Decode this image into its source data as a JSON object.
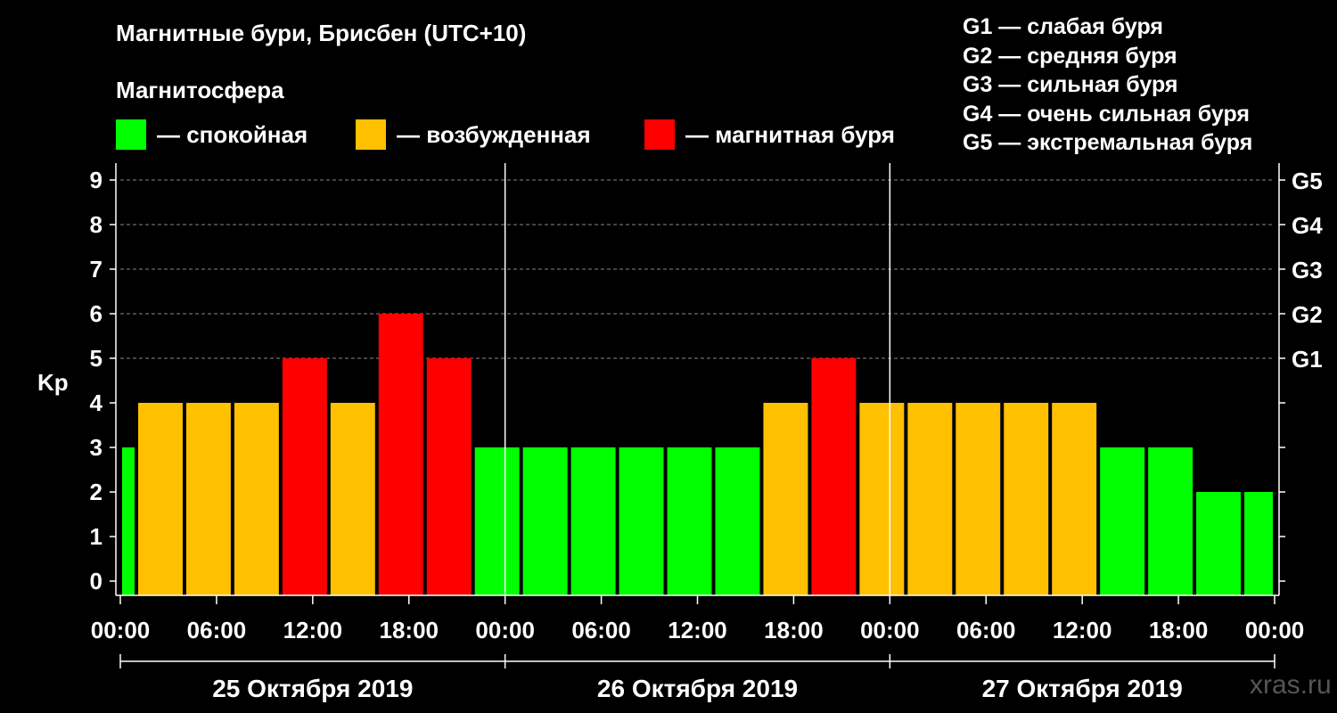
{
  "header": {
    "title": "Магнитные бури, Брисбен (UTC+10)",
    "subtitle": "Магнитосфера"
  },
  "legend": [
    {
      "label": "— спокойная",
      "color": "#00ff00"
    },
    {
      "label": "— возбужденная",
      "color": "#ffc000"
    },
    {
      "label": "— магнитная буря",
      "color": "#ff0000"
    }
  ],
  "g_scale": [
    "G1 — слабая буря",
    "G2 — средняя буря",
    "G3 — сильная буря",
    "G4 — очень сильная буря",
    "G5 — экстремальная буря"
  ],
  "watermark": "xras.ru",
  "colors": {
    "quiet": "#00ff00",
    "active": "#ffc000",
    "storm": "#ff0000",
    "background": "#000000",
    "axis": "#ffffff",
    "grid": "#888888"
  },
  "chart_data": {
    "type": "bar",
    "ylabel": "Kp",
    "ylim": [
      0,
      9
    ],
    "y_ticks": [
      0,
      1,
      2,
      3,
      4,
      5,
      6,
      7,
      8,
      9
    ],
    "right_axis_labels": [
      {
        "kp": 5,
        "label": "G1"
      },
      {
        "kp": 6,
        "label": "G2"
      },
      {
        "kp": 7,
        "label": "G3"
      },
      {
        "kp": 8,
        "label": "G4"
      },
      {
        "kp": 9,
        "label": "G5"
      }
    ],
    "grid_lines_at": [
      5,
      6,
      7,
      8,
      9
    ],
    "x_range_hours": [
      0,
      72
    ],
    "x_tick_labels": [
      "00:00",
      "06:00",
      "12:00",
      "18:00",
      "00:00",
      "06:00",
      "12:00",
      "18:00",
      "00:00",
      "06:00",
      "12:00",
      "18:00",
      "00:00"
    ],
    "x_tick_hours": [
      0,
      6,
      12,
      18,
      24,
      30,
      36,
      42,
      48,
      54,
      60,
      66,
      72
    ],
    "day_separators_hours": [
      24,
      48
    ],
    "days": [
      "25 Октября 2019",
      "26 Октября 2019",
      "27 Октября 2019"
    ],
    "bars": [
      {
        "start_hour": 0,
        "end_hour": 1,
        "kp": 3,
        "level": "quiet"
      },
      {
        "start_hour": 1,
        "end_hour": 4,
        "kp": 4,
        "level": "active"
      },
      {
        "start_hour": 4,
        "end_hour": 7,
        "kp": 4,
        "level": "active"
      },
      {
        "start_hour": 7,
        "end_hour": 10,
        "kp": 4,
        "level": "active"
      },
      {
        "start_hour": 10,
        "end_hour": 13,
        "kp": 5,
        "level": "storm"
      },
      {
        "start_hour": 13,
        "end_hour": 16,
        "kp": 4,
        "level": "active"
      },
      {
        "start_hour": 16,
        "end_hour": 19,
        "kp": 6,
        "level": "storm"
      },
      {
        "start_hour": 19,
        "end_hour": 22,
        "kp": 5,
        "level": "storm"
      },
      {
        "start_hour": 22,
        "end_hour": 25,
        "kp": 3,
        "level": "quiet"
      },
      {
        "start_hour": 25,
        "end_hour": 28,
        "kp": 3,
        "level": "quiet"
      },
      {
        "start_hour": 28,
        "end_hour": 31,
        "kp": 3,
        "level": "quiet"
      },
      {
        "start_hour": 31,
        "end_hour": 34,
        "kp": 3,
        "level": "quiet"
      },
      {
        "start_hour": 34,
        "end_hour": 37,
        "kp": 3,
        "level": "quiet"
      },
      {
        "start_hour": 37,
        "end_hour": 40,
        "kp": 3,
        "level": "quiet"
      },
      {
        "start_hour": 40,
        "end_hour": 43,
        "kp": 4,
        "level": "active"
      },
      {
        "start_hour": 43,
        "end_hour": 46,
        "kp": 5,
        "level": "storm"
      },
      {
        "start_hour": 46,
        "end_hour": 49,
        "kp": 4,
        "level": "active"
      },
      {
        "start_hour": 49,
        "end_hour": 52,
        "kp": 4,
        "level": "active"
      },
      {
        "start_hour": 52,
        "end_hour": 55,
        "kp": 4,
        "level": "active"
      },
      {
        "start_hour": 55,
        "end_hour": 58,
        "kp": 4,
        "level": "active"
      },
      {
        "start_hour": 58,
        "end_hour": 61,
        "kp": 4,
        "level": "active"
      },
      {
        "start_hour": 61,
        "end_hour": 64,
        "kp": 3,
        "level": "quiet"
      },
      {
        "start_hour": 64,
        "end_hour": 67,
        "kp": 3,
        "level": "quiet"
      },
      {
        "start_hour": 67,
        "end_hour": 70,
        "kp": 2,
        "level": "quiet"
      },
      {
        "start_hour": 70,
        "end_hour": 72,
        "kp": 2,
        "level": "quiet"
      }
    ]
  }
}
